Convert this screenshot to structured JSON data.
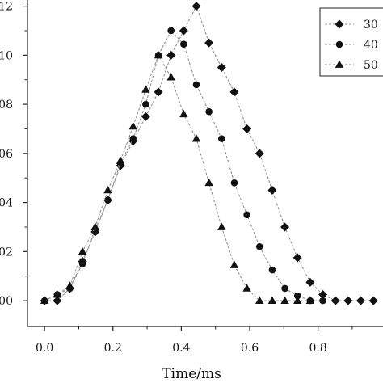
{
  "chart_data": {
    "type": "line",
    "xlabel": "Time/ms",
    "ylabel": "",
    "xlim": [
      -0.05,
      0.99
    ],
    "ylim": [
      -0.0105,
      0.1225
    ],
    "x_ticks": [
      0.0,
      0.2,
      0.4,
      0.6,
      0.8
    ],
    "x_tick_labels": [
      "0.0",
      "0.2",
      "0.4",
      "0.6",
      "0.8"
    ],
    "y_ticks": [
      0.0,
      0.02,
      0.04,
      0.06,
      0.08,
      0.1,
      0.12
    ],
    "y_tick_labels": [
      "00",
      "02",
      "04",
      "06",
      "08",
      "10",
      "12"
    ],
    "legend_position": "top-right",
    "series": [
      {
        "name": "30",
        "marker": "diamond",
        "x": [
          0.0,
          0.037,
          0.074,
          0.111,
          0.148,
          0.185,
          0.222,
          0.259,
          0.296,
          0.333,
          0.37,
          0.407,
          0.444,
          0.481,
          0.518,
          0.555,
          0.592,
          0.629,
          0.666,
          0.703,
          0.74,
          0.777,
          0.814,
          0.851,
          0.888,
          0.925,
          0.962
        ],
        "y": [
          0.0,
          0.0,
          0.005,
          0.016,
          0.028,
          0.041,
          0.055,
          0.065,
          0.075,
          0.085,
          0.1,
          0.11,
          0.12,
          0.105,
          0.095,
          0.085,
          0.07,
          0.06,
          0.045,
          0.03,
          0.0175,
          0.0075,
          0.0025,
          0.0,
          0.0,
          0.0,
          0.0
        ]
      },
      {
        "name": "40",
        "marker": "circle",
        "x": [
          0.0,
          0.037,
          0.074,
          0.111,
          0.148,
          0.185,
          0.222,
          0.259,
          0.296,
          0.333,
          0.37,
          0.407,
          0.444,
          0.481,
          0.518,
          0.555,
          0.592,
          0.629,
          0.666,
          0.703,
          0.74,
          0.777,
          0.814
        ],
        "y": [
          0.0,
          0.0025,
          0.005,
          0.015,
          0.029,
          0.041,
          0.056,
          0.066,
          0.08,
          0.1,
          0.11,
          0.1045,
          0.088,
          0.077,
          0.066,
          0.048,
          0.035,
          0.022,
          0.0125,
          0.005,
          0.002,
          0.0,
          0.0
        ]
      },
      {
        "name": "50",
        "marker": "triangle",
        "x": [
          0.0,
          0.037,
          0.074,
          0.111,
          0.148,
          0.185,
          0.222,
          0.259,
          0.296,
          0.333,
          0.37,
          0.407,
          0.444,
          0.481,
          0.518,
          0.555,
          0.592,
          0.629,
          0.666,
          0.703,
          0.74,
          0.777
        ],
        "y": [
          0.0,
          0.0025,
          0.006,
          0.02,
          0.03,
          0.045,
          0.057,
          0.071,
          0.086,
          0.1,
          0.091,
          0.076,
          0.066,
          0.048,
          0.03,
          0.0145,
          0.005,
          0.0,
          0.0,
          0.0,
          0.0,
          0.0
        ]
      }
    ]
  }
}
